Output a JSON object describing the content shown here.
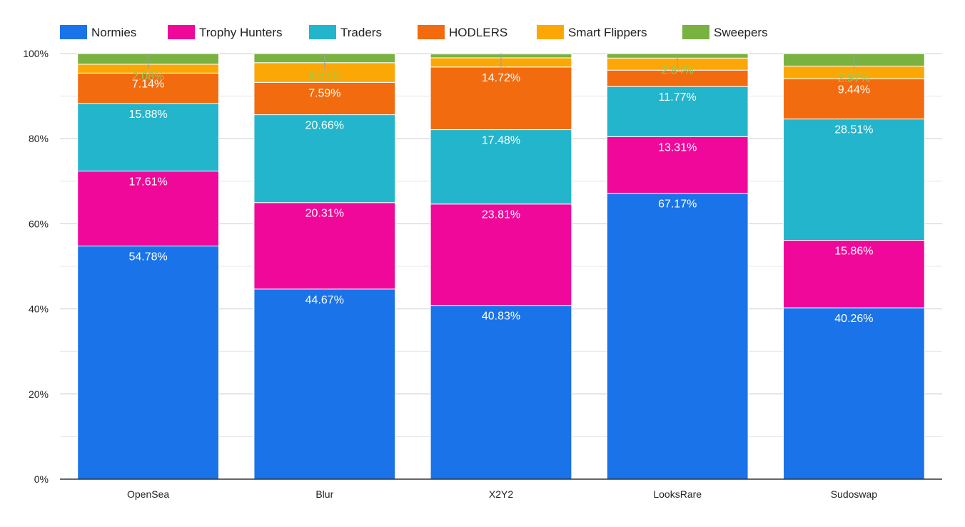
{
  "chart_data": {
    "type": "bar",
    "stacked": true,
    "normalized_percent": true,
    "categories": [
      "OpenSea",
      "Blur",
      "X2Y2",
      "LooksRare",
      "Sudoswap"
    ],
    "series": [
      {
        "name": "Normies",
        "color": "#1a73e8",
        "values": [
          54.78,
          44.67,
          40.83,
          67.17,
          40.26
        ],
        "labels": [
          "54.78%",
          "44.67%",
          "40.83%",
          "67.17%",
          "40.26%"
        ]
      },
      {
        "name": "Trophy Hunters",
        "color": "#f0089a",
        "values": [
          17.61,
          20.31,
          23.81,
          13.31,
          15.86
        ],
        "labels": [
          "17.61%",
          "20.31%",
          "23.81%",
          "13.31%",
          "15.86%"
        ]
      },
      {
        "name": "Traders",
        "color": "#23b5cb",
        "values": [
          15.88,
          20.66,
          17.48,
          11.77,
          28.51
        ],
        "labels": [
          "15.88%",
          "20.66%",
          "17.48%",
          "11.77%",
          "28.51%"
        ]
      },
      {
        "name": "HODLERS",
        "color": "#f26b0f",
        "values": [
          7.14,
          7.59,
          14.72,
          3.85,
          9.44
        ],
        "labels": [
          "7.14%",
          "7.59%",
          "14.72%",
          "",
          "9.44%"
        ]
      },
      {
        "name": "Smart Flippers",
        "color": "#fba806",
        "values": [
          2.08,
          4.63,
          2.16,
          2.84,
          2.97
        ],
        "labels": [
          "2.08%",
          "4.63%",
          "",
          "2.84%",
          "2.97%"
        ]
      },
      {
        "name": "Sweepers",
        "color": "#79b240",
        "values": [
          2.51,
          2.14,
          0.9,
          1.06,
          2.96
        ],
        "labels": [
          "",
          "",
          "",
          "",
          ""
        ]
      }
    ],
    "yticks": [
      "0%",
      "20%",
      "40%",
      "60%",
      "80%",
      "100%"
    ],
    "ylim": [
      0,
      100
    ],
    "xlabel": "",
    "ylabel": "",
    "grid": true,
    "legend": "top-left"
  }
}
